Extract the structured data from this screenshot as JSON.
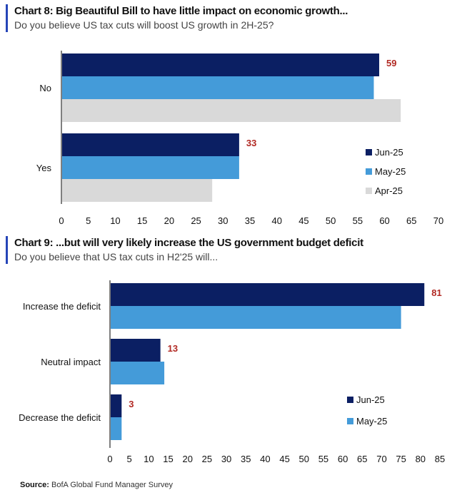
{
  "chart_data": [
    {
      "type": "bar",
      "orientation": "horizontal",
      "title": "Chart 8: Big Beautiful Bill to have little impact on economic growth...",
      "subtitle": "Do you believe US tax cuts will boost US growth in 2H-25?",
      "categories": [
        "No",
        "Yes"
      ],
      "series": [
        {
          "name": "Jun-25",
          "color": "#0b1f63",
          "values": [
            59,
            33
          ]
        },
        {
          "name": "May-25",
          "color": "#449bd9",
          "values": [
            58,
            33
          ]
        },
        {
          "name": "Apr-25",
          "color": "#d9d9d9",
          "values": [
            63,
            28
          ]
        }
      ],
      "data_labels": {
        "series": "Jun-25",
        "values": [
          "59",
          "33"
        ],
        "color": "#b22a24"
      },
      "xlim": [
        0,
        70
      ],
      "xticks": [
        "0",
        "5",
        "10",
        "15",
        "20",
        "25",
        "30",
        "35",
        "40",
        "45",
        "50",
        "55",
        "60",
        "65",
        "70"
      ],
      "legend": "bottom-right",
      "grid": false
    },
    {
      "type": "bar",
      "orientation": "horizontal",
      "title": "Chart 9: ...but will very likely increase the US government budget deficit",
      "subtitle": "Do you believe that US tax cuts in H2'25 will...",
      "categories": [
        "Increase the deficit",
        "Neutral impact",
        "Decrease the deficit"
      ],
      "series": [
        {
          "name": "Jun-25",
          "color": "#0b1f63",
          "values": [
            81,
            13,
            3
          ]
        },
        {
          "name": "May-25",
          "color": "#449bd9",
          "values": [
            75,
            14,
            3
          ]
        }
      ],
      "data_labels": {
        "series": "Jun-25",
        "values": [
          "81",
          "13",
          "3"
        ],
        "color": "#b22a24"
      },
      "xlim": [
        0,
        85
      ],
      "xticks": [
        "0",
        "5",
        "10",
        "15",
        "20",
        "25",
        "30",
        "35",
        "40",
        "45",
        "50",
        "55",
        "60",
        "65",
        "70",
        "75",
        "80",
        "85"
      ],
      "legend": "bottom-right",
      "grid": false
    }
  ],
  "source": {
    "label": "Source:",
    "text": "BofA Global Fund Manager Survey"
  }
}
